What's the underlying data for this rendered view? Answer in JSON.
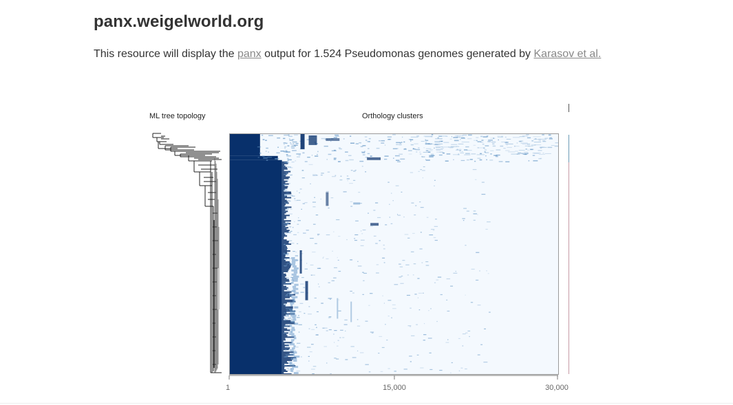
{
  "header": {
    "site_title": "panx.weigelworld.org"
  },
  "intro": {
    "prefix": "This resource will display the ",
    "panx_link": "panx",
    "middle": " output for 1.524 Pseudomonas genomes generated by ",
    "karasov_link": "Karasov et al."
  },
  "figure": {
    "tree_label": "ML tree topology",
    "clusters_label": "Orthology clusters",
    "heatmap_colors": {
      "present": "#08306b",
      "absent": "#f4f9fe",
      "mid": "#6b9bc8"
    },
    "x_axis": {
      "ticks": [
        "1",
        "15,000",
        "30,000"
      ]
    }
  }
}
